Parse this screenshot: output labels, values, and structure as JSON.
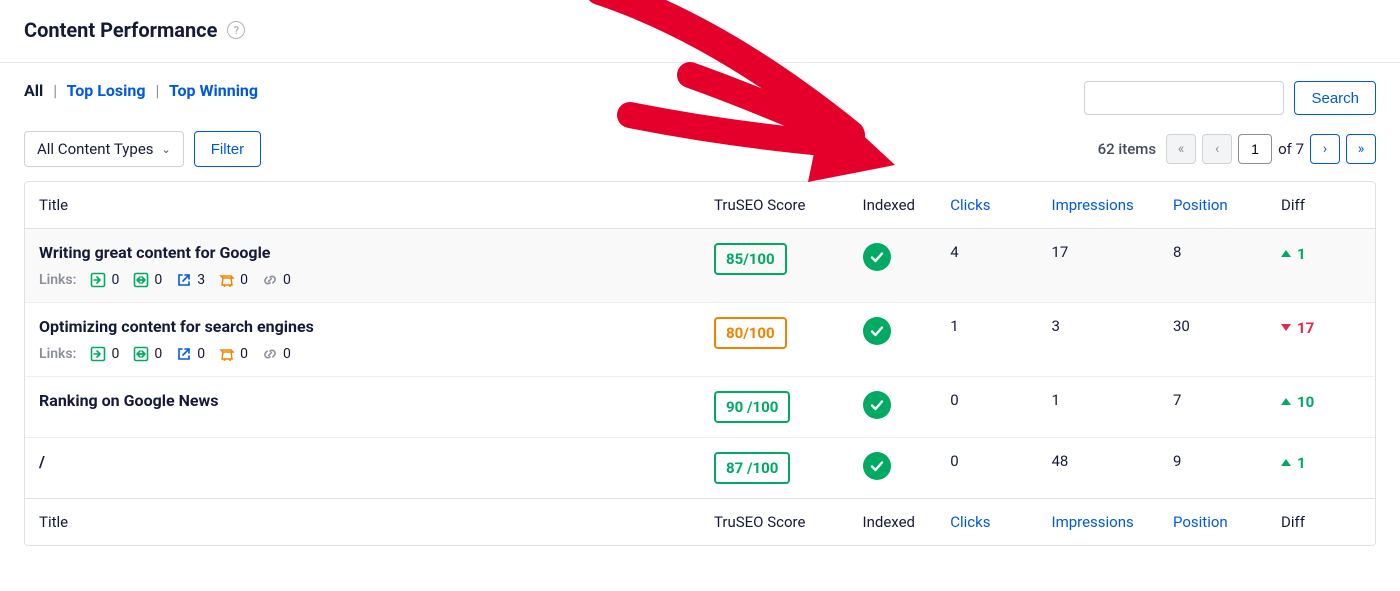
{
  "header": {
    "title": "Content Performance"
  },
  "tabs": {
    "all": "All",
    "losing": "Top Losing",
    "winning": "Top Winning"
  },
  "controls": {
    "content_types": "All Content Types",
    "filter": "Filter",
    "search": "Search"
  },
  "pager": {
    "count_text": "62 items",
    "page": "1",
    "of_text": "of 7"
  },
  "columns": {
    "title": "Title",
    "score": "TruSEO Score",
    "indexed": "Indexed",
    "clicks": "Clicks",
    "impressions": "Impressions",
    "position": "Position",
    "diff": "Diff"
  },
  "links_label": "Links:",
  "rows": [
    {
      "title": "Writing great content for Google",
      "score": "85/100",
      "score_class": "score-green",
      "clicks": "4",
      "impressions": "17",
      "position": "8",
      "diff_val": "1",
      "diff_dir": "up",
      "links": {
        "in": "0",
        "out": "0",
        "ext": "3",
        "aff": "0",
        "link": "0"
      },
      "alt": true
    },
    {
      "title": "Optimizing content for search engines",
      "score": "80/100",
      "score_class": "score-orange",
      "clicks": "1",
      "impressions": "3",
      "position": "30",
      "diff_val": "17",
      "diff_dir": "down",
      "links": {
        "in": "0",
        "out": "0",
        "ext": "0",
        "aff": "0",
        "link": "0"
      },
      "alt": false
    },
    {
      "title": "Ranking on Google News",
      "score": "90 /100",
      "score_class": "score-green",
      "clicks": "0",
      "impressions": "1",
      "position": "7",
      "diff_val": "10",
      "diff_dir": "up",
      "links": null,
      "alt": false
    },
    {
      "title": "/",
      "score": "87 /100",
      "score_class": "score-green",
      "clicks": "0",
      "impressions": "48",
      "position": "9",
      "diff_val": "1",
      "diff_dir": "up",
      "links": null,
      "alt": false
    }
  ],
  "colors": {
    "accent": "#005AE0",
    "green": "#00AA63",
    "orange": "#F18200",
    "red": "#DF2A4A",
    "arrow": "#E4002B"
  },
  "icons": {
    "inbound_color": "#00AA63",
    "outbound_color": "#00AA63",
    "external_color": "#005AE0",
    "affiliate_color": "#F18200",
    "link_color": "#8C8F9A"
  }
}
